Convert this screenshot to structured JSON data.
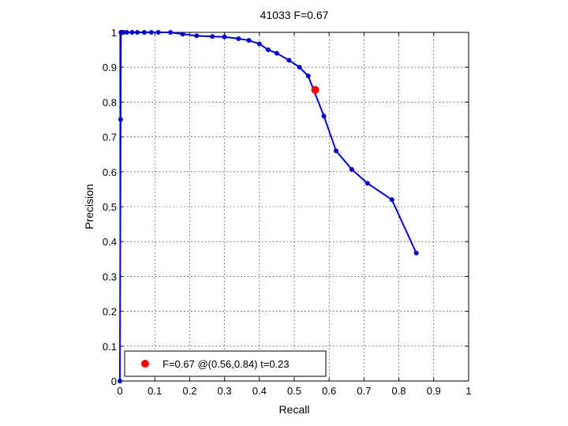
{
  "chart_data": {
    "type": "line",
    "title": "41033 F=0.67",
    "xlabel": "Recall",
    "ylabel": "Precision",
    "xlim": [
      0,
      1
    ],
    "ylim": [
      0,
      1
    ],
    "xticks": [
      0,
      0.1,
      0.2,
      0.3,
      0.4,
      0.5,
      0.6,
      0.7,
      0.8,
      0.9,
      1
    ],
    "yticks": [
      0,
      0.1,
      0.2,
      0.3,
      0.4,
      0.5,
      0.6,
      0.7,
      0.8,
      0.9,
      1
    ],
    "xtick_labels": [
      "0",
      "0.1",
      "0.2",
      "0.3",
      "0.4",
      "0.5",
      "0.6",
      "0.7",
      "0.8",
      "0.9",
      "1"
    ],
    "ytick_labels": [
      "0",
      "0.1",
      "0.2",
      "0.3",
      "0.4",
      "0.5",
      "0.6",
      "0.7",
      "0.8",
      "0.9",
      "1"
    ],
    "grid": true,
    "series": [
      {
        "color": "#0000cc",
        "x": [
          0,
          0.002,
          0.003,
          0.005,
          0.01,
          0.02,
          0.035,
          0.05,
          0.07,
          0.09,
          0.11,
          0.145,
          0.18,
          0.22,
          0.265,
          0.3,
          0.34,
          0.37,
          0.4,
          0.425,
          0.45,
          0.485,
          0.515,
          0.54,
          0.585,
          0.62,
          0.665,
          0.71,
          0.78,
          0.85
        ],
        "y": [
          0,
          0.75,
          1.0,
          1.0,
          1.0,
          1.0,
          1.0,
          1.0,
          1.0,
          1.0,
          1.0,
          1.0,
          0.995,
          0.99,
          0.988,
          0.987,
          0.982,
          0.977,
          0.967,
          0.95,
          0.94,
          0.92,
          0.9,
          0.875,
          0.76,
          0.66,
          0.607,
          0.567,
          0.52,
          0.367
        ]
      }
    ],
    "highlight": {
      "x": 0.56,
      "y": 0.835,
      "color": "#ff0000"
    },
    "legend": {
      "position": "bottom-left",
      "label": "F=0.67 @(0.56,0.84) t=0.23"
    }
  }
}
